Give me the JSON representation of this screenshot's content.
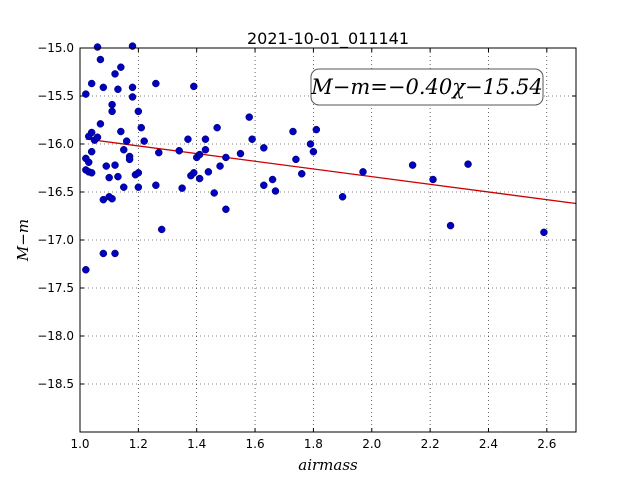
{
  "chart_data": {
    "type": "scatter",
    "title": "2021-10-01_011141",
    "xlabel": "airmass",
    "ylabel": "M−m",
    "xlim": [
      1.0,
      2.7
    ],
    "ylim": [
      -19.0,
      -15.0
    ],
    "y_inverted": true,
    "grid": true,
    "x_ticks": [
      1.0,
      1.2,
      1.4,
      1.6,
      1.8,
      2.0,
      2.2,
      2.4,
      2.6
    ],
    "x_tick_labels": [
      "1.0",
      "1.2",
      "1.4",
      "1.6",
      "1.8",
      "2.0",
      "2.2",
      "2.4",
      "2.6"
    ],
    "y_ticks": [
      -15.0,
      -15.5,
      -16.0,
      -16.5,
      -17.0,
      -17.5,
      -18.0,
      -18.5
    ],
    "y_tick_labels": [
      "−15.0",
      "−15.5",
      "−16.0",
      "−16.5",
      "−17.0",
      "−17.5",
      "−18.0",
      "−18.5"
    ],
    "annotation": {
      "text": "M−m=−0.40χ−15.54",
      "position": "top-right"
    },
    "series": [
      {
        "marker_color": "#0000bf",
        "points": [
          [
            1.02,
            -16.15
          ],
          [
            1.02,
            -16.27
          ],
          [
            1.02,
            -17.31
          ],
          [
            1.02,
            -15.48
          ],
          [
            1.03,
            -16.19
          ],
          [
            1.03,
            -16.29
          ],
          [
            1.03,
            -15.92
          ],
          [
            1.04,
            -15.88
          ],
          [
            1.04,
            -16.08
          ],
          [
            1.04,
            -15.37
          ],
          [
            1.04,
            -16.3
          ],
          [
            1.05,
            -15.96
          ],
          [
            1.06,
            -14.99
          ],
          [
            1.06,
            -15.93
          ],
          [
            1.07,
            -15.12
          ],
          [
            1.07,
            -15.79
          ],
          [
            1.08,
            -15.41
          ],
          [
            1.08,
            -16.58
          ],
          [
            1.08,
            -17.14
          ],
          [
            1.09,
            -16.23
          ],
          [
            1.1,
            -16.55
          ],
          [
            1.1,
            -16.35
          ],
          [
            1.11,
            -15.66
          ],
          [
            1.11,
            -15.59
          ],
          [
            1.11,
            -16.57
          ],
          [
            1.12,
            -16.22
          ],
          [
            1.12,
            -17.14
          ],
          [
            1.12,
            -15.27
          ],
          [
            1.13,
            -15.43
          ],
          [
            1.13,
            -16.34
          ],
          [
            1.14,
            -15.2
          ],
          [
            1.14,
            -15.87
          ],
          [
            1.15,
            -16.45
          ],
          [
            1.15,
            -16.06
          ],
          [
            1.16,
            -15.97
          ],
          [
            1.17,
            -16.13
          ],
          [
            1.17,
            -16.16
          ],
          [
            1.18,
            -14.98
          ],
          [
            1.18,
            -15.41
          ],
          [
            1.18,
            -15.51
          ],
          [
            1.19,
            -16.32
          ],
          [
            1.2,
            -16.3
          ],
          [
            1.2,
            -15.66
          ],
          [
            1.2,
            -16.45
          ],
          [
            1.21,
            -15.83
          ],
          [
            1.22,
            -15.97
          ],
          [
            1.26,
            -15.37
          ],
          [
            1.26,
            -16.43
          ],
          [
            1.27,
            -16.09
          ],
          [
            1.28,
            -16.89
          ],
          [
            1.34,
            -16.07
          ],
          [
            1.35,
            -16.46
          ],
          [
            1.37,
            -15.95
          ],
          [
            1.38,
            -16.33
          ],
          [
            1.39,
            -16.3
          ],
          [
            1.39,
            -15.4
          ],
          [
            1.4,
            -16.14
          ],
          [
            1.41,
            -16.36
          ],
          [
            1.41,
            -16.11
          ],
          [
            1.43,
            -15.95
          ],
          [
            1.43,
            -16.06
          ],
          [
            1.44,
            -16.29
          ],
          [
            1.46,
            -16.51
          ],
          [
            1.47,
            -15.83
          ],
          [
            1.48,
            -16.23
          ],
          [
            1.5,
            -16.14
          ],
          [
            1.5,
            -16.68
          ],
          [
            1.55,
            -16.1
          ],
          [
            1.58,
            -15.72
          ],
          [
            1.59,
            -15.95
          ],
          [
            1.63,
            -16.43
          ],
          [
            1.63,
            -16.04
          ],
          [
            1.66,
            -16.37
          ],
          [
            1.67,
            -16.49
          ],
          [
            1.73,
            -15.87
          ],
          [
            1.74,
            -16.16
          ],
          [
            1.76,
            -16.31
          ],
          [
            1.79,
            -16.0
          ],
          [
            1.8,
            -16.08
          ],
          [
            1.81,
            -15.85
          ],
          [
            1.9,
            -16.55
          ],
          [
            1.97,
            -16.29
          ],
          [
            2.14,
            -16.22
          ],
          [
            2.21,
            -16.37
          ],
          [
            2.27,
            -16.85
          ],
          [
            2.33,
            -16.21
          ],
          [
            2.59,
            -16.92
          ]
        ]
      }
    ],
    "fit_line": {
      "slope": -0.4,
      "intercept": -15.54,
      "color": "#cc0000"
    }
  }
}
